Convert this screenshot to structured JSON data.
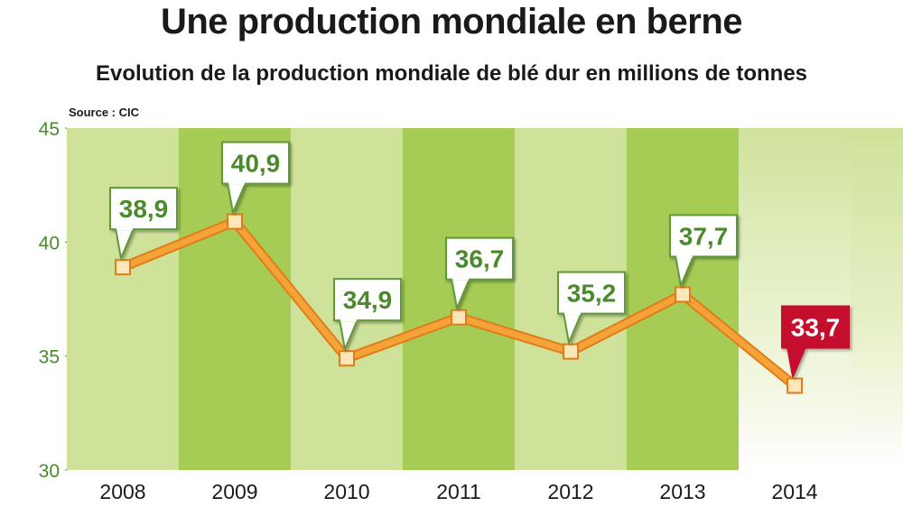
{
  "header": {
    "title": "Une production mondiale en berne",
    "subtitle": "Evolution de la production mondiale de blé dur en millions de tonnes",
    "source": "Source : CIC"
  },
  "chart_data": {
    "type": "line",
    "title": "Une production mondiale en berne",
    "subtitle": "Evolution de la production mondiale de blé dur en millions de tonnes",
    "xlabel": "",
    "ylabel": "",
    "categories": [
      "2008",
      "2009",
      "2010",
      "2011",
      "2012",
      "2013",
      "2014"
    ],
    "series": [
      {
        "values": [
          38.9,
          40.9,
          34.9,
          36.7,
          35.2,
          37.7,
          33.7
        ],
        "labels": [
          "38,9",
          "40,9",
          "34,9",
          "36,7",
          "35,2",
          "37,7",
          "33,7"
        ]
      }
    ],
    "ylim": [
      30,
      45
    ],
    "yticks": [
      30,
      35,
      40,
      45
    ],
    "ytick_labels": [
      "30",
      "35",
      "40",
      "45"
    ],
    "highlighted_category": "2014",
    "colors": {
      "line": "#f5a238",
      "line_edge": "#e07d18",
      "marker": "#fde6b8",
      "label_text": "#4a8a2c",
      "label_border": "#5f9a37",
      "highlight_label_bg": "#c5112e",
      "band_light": "#cfe29a",
      "band_dark": "#a6cc55",
      "axis_text": "#4a8a2c"
    },
    "grid": false,
    "legend": "none"
  }
}
